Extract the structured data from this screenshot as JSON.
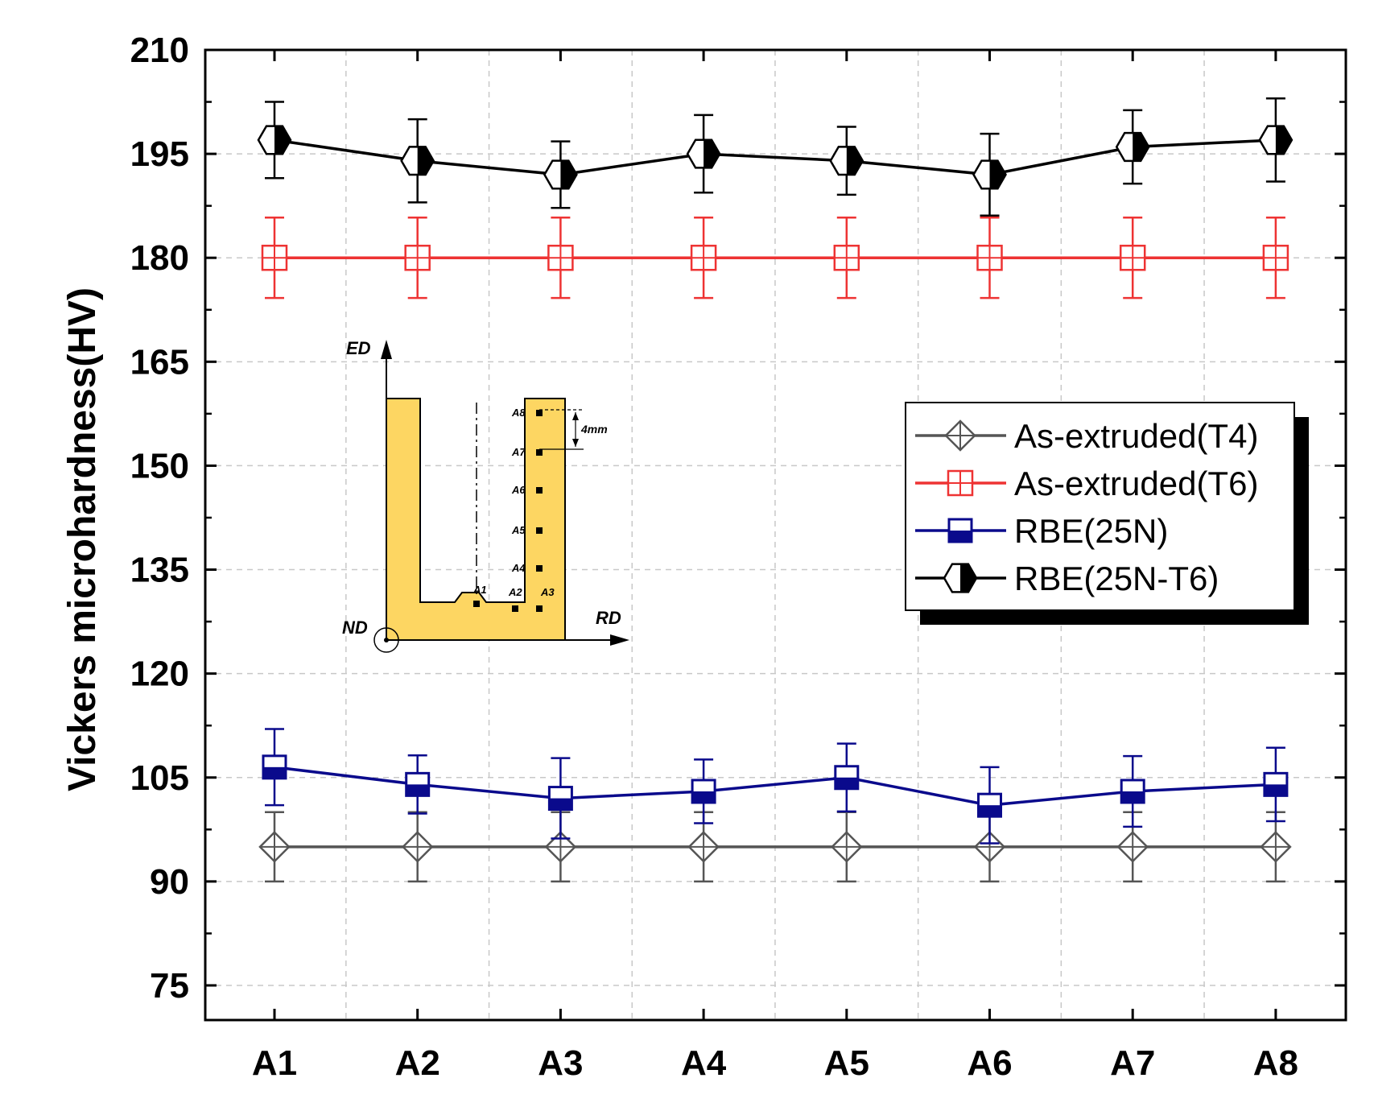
{
  "chart_data": {
    "type": "line",
    "title": "",
    "xlabel": "",
    "ylabel": "Vickers microhardness(HV)",
    "categories": [
      "A1",
      "A2",
      "A3",
      "A4",
      "A5",
      "A6",
      "A7",
      "A8"
    ],
    "ylim": [
      70,
      210
    ],
    "yticks": [
      75,
      90,
      105,
      120,
      135,
      150,
      165,
      180,
      195,
      210
    ],
    "grid": true,
    "legend_position": "right",
    "series": [
      {
        "name": "As-extruded(T4)",
        "color": "#555555",
        "marker": "diamond-cross",
        "values": [
          95,
          95,
          95,
          95,
          95,
          95,
          95,
          95
        ],
        "errors": [
          5,
          5,
          5,
          5,
          5,
          5,
          5,
          5
        ]
      },
      {
        "name": "As-extruded(T6)",
        "color": "#ee3333",
        "marker": "square-cross",
        "values": [
          180,
          180,
          180,
          180,
          180,
          180,
          180,
          180
        ],
        "errors": [
          5.8,
          5.8,
          5.8,
          5.8,
          5.8,
          5.8,
          5.8,
          5.8
        ]
      },
      {
        "name": "RBE(25N)",
        "color": "#0a0a8c",
        "marker": "square-bottom-filled",
        "values": [
          106.5,
          104,
          102,
          103,
          105,
          101,
          103,
          104
        ],
        "errors": [
          5.5,
          4.2,
          5.8,
          4.6,
          4.9,
          5.5,
          5.1,
          5.3
        ]
      },
      {
        "name": "RBE(25N-T6)",
        "color": "#000000",
        "marker": "hexagon-right-filled",
        "values": [
          197,
          194,
          192,
          195,
          194,
          192,
          196,
          197
        ],
        "errors": [
          5.5,
          6.0,
          4.8,
          5.6,
          4.9,
          5.9,
          5.3,
          6.0
        ]
      }
    ]
  },
  "inset": {
    "axis_ed": "ED",
    "axis_rd": "RD",
    "axis_nd": "ND",
    "points": [
      "A1",
      "A2",
      "A3",
      "A4",
      "A5",
      "A6",
      "A7",
      "A8"
    ],
    "spacing": "4mm",
    "fill_color": "#fdd662"
  }
}
